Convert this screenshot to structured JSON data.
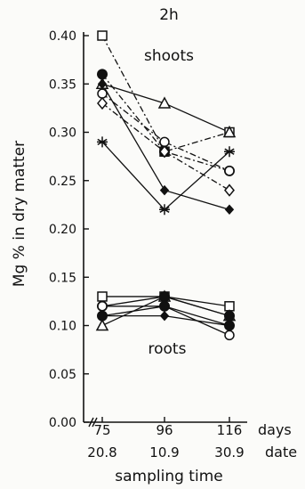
{
  "chart_data": {
    "type": "line",
    "title": "2h",
    "ylabel": "Mg % in dry matter",
    "xlabel": "sampling time",
    "ylim": [
      0,
      0.4
    ],
    "yticks": [
      "0.00",
      "0.05",
      "0.10",
      "0.15",
      "0.20",
      "0.25",
      "0.30",
      "0.35",
      "0.40"
    ],
    "x": [
      75,
      96,
      116
    ],
    "xtick_days": [
      "75",
      "96",
      "116"
    ],
    "xtick_dates": [
      "20.8",
      "10.9",
      "30.9"
    ],
    "x_unit_days": "days",
    "x_unit_date": "date",
    "grid": false,
    "annotations": [
      "shoots",
      "roots"
    ],
    "series": [
      {
        "group": "shoots",
        "marker": "square-open",
        "dash": "dashdot",
        "values": [
          0.4,
          0.28,
          0.3
        ]
      },
      {
        "group": "shoots",
        "marker": "triangle-open",
        "dash": "solid",
        "values": [
          0.35,
          0.33,
          0.3
        ]
      },
      {
        "group": "shoots",
        "marker": "circle-filled",
        "dash": "dashdot",
        "values": [
          0.36,
          0.28,
          0.26
        ]
      },
      {
        "group": "shoots",
        "marker": "circle-open",
        "dash": "dashdot",
        "values": [
          0.34,
          0.29,
          0.26
        ]
      },
      {
        "group": "shoots",
        "marker": "diamond-open",
        "dash": "dashdot",
        "values": [
          0.33,
          0.28,
          0.24
        ]
      },
      {
        "group": "shoots",
        "marker": "diamond-filled",
        "dash": "solid",
        "values": [
          0.35,
          0.24,
          0.22
        ]
      },
      {
        "group": "shoots",
        "marker": "asterisk",
        "dash": "solid",
        "values": [
          0.29,
          0.22,
          0.28
        ]
      },
      {
        "group": "roots",
        "marker": "square-open",
        "dash": "solid",
        "values": [
          0.13,
          0.13,
          0.12
        ]
      },
      {
        "group": "roots",
        "marker": "triangle-open",
        "dash": "solid",
        "values": [
          0.1,
          0.13,
          0.11
        ]
      },
      {
        "group": "roots",
        "marker": "circle-filled",
        "dash": "solid",
        "values": [
          0.12,
          0.13,
          0.11
        ]
      },
      {
        "group": "roots",
        "marker": "circle-open",
        "dash": "solid",
        "values": [
          0.12,
          0.12,
          0.09
        ]
      },
      {
        "group": "roots",
        "marker": "diamond-filled",
        "dash": "solid",
        "values": [
          0.11,
          0.11,
          0.1
        ]
      },
      {
        "group": "roots",
        "marker": "circle-filled",
        "dash": "solid",
        "values": [
          0.11,
          0.12,
          0.1
        ]
      }
    ]
  }
}
